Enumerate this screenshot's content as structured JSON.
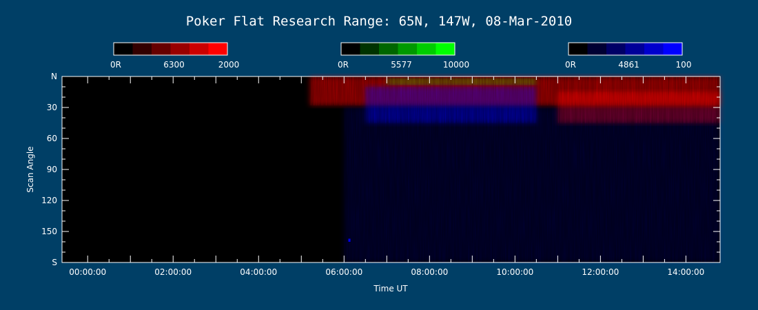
{
  "colors": {
    "background": "#003f66",
    "plot_background": "#000000",
    "foreground": "#ffffff",
    "red_channel": "#ff0000",
    "green_channel": "#00ff00",
    "blue_channel": "#0000ff"
  },
  "chart_data": {
    "type": "heatmap",
    "title": "Poker Flat Research Range: 65N, 147W, 08-Mar-2010",
    "xlabel": "Time UT",
    "ylabel": "Scan Angle",
    "x_range_hours": [
      -0.6,
      14.8
    ],
    "y_range_deg": [
      0,
      180
    ],
    "x_ticks": [
      {
        "value": 0,
        "label": "00:00:00"
      },
      {
        "value": 2,
        "label": "02:00:00"
      },
      {
        "value": 4,
        "label": "04:00:00"
      },
      {
        "value": 6,
        "label": "06:00:00"
      },
      {
        "value": 8,
        "label": "08:00:00"
      },
      {
        "value": 10,
        "label": "10:00:00"
      },
      {
        "value": 12,
        "label": "12:00:00"
      },
      {
        "value": 14,
        "label": "14:00:00"
      }
    ],
    "y_ticks": [
      {
        "value": 0,
        "label": "N"
      },
      {
        "value": 30,
        "label": "30"
      },
      {
        "value": 60,
        "label": "60"
      },
      {
        "value": 90,
        "label": "90"
      },
      {
        "value": 120,
        "label": "120"
      },
      {
        "value": 150,
        "label": "150"
      },
      {
        "value": 180,
        "label": "S"
      }
    ],
    "colorbars": [
      {
        "wavelength": "6300",
        "min_label": "0R",
        "max_label": "2000",
        "color": "#ff0000",
        "steps": 6
      },
      {
        "wavelength": "5577",
        "min_label": "0R",
        "max_label": "10000",
        "color": "#00ff00",
        "steps": 6
      },
      {
        "wavelength": "4861",
        "min_label": "0R",
        "max_label": "100",
        "color": "#0000ff",
        "steps": 6
      }
    ],
    "emission_regions": [
      {
        "channel": "6300",
        "color": "#ff0000",
        "t_start": 5.2,
        "t_end": 14.8,
        "angle_min": 0,
        "angle_max": 28,
        "intensity": 0.45
      },
      {
        "channel": "6300",
        "color": "#ff0000",
        "t_start": 11.0,
        "t_end": 14.8,
        "angle_min": 15,
        "angle_max": 45,
        "intensity": 0.35
      },
      {
        "channel": "5577",
        "color": "#00ff00",
        "t_start": 7.0,
        "t_end": 10.5,
        "angle_min": 2,
        "angle_max": 8,
        "intensity": 0.25
      },
      {
        "channel": "4861",
        "color": "#0000ff",
        "t_start": 6.5,
        "t_end": 10.5,
        "angle_min": 10,
        "angle_max": 45,
        "intensity": 0.35
      },
      {
        "channel": "4861",
        "color": "#0000ff",
        "t_start": 6.0,
        "t_end": 14.8,
        "angle_min": 30,
        "angle_max": 180,
        "intensity": 0.12
      },
      {
        "channel": "4861",
        "color": "#0000ff",
        "t_start": 6.1,
        "t_end": 6.15,
        "angle_min": 157,
        "angle_max": 160,
        "intensity": 0.9
      }
    ]
  }
}
